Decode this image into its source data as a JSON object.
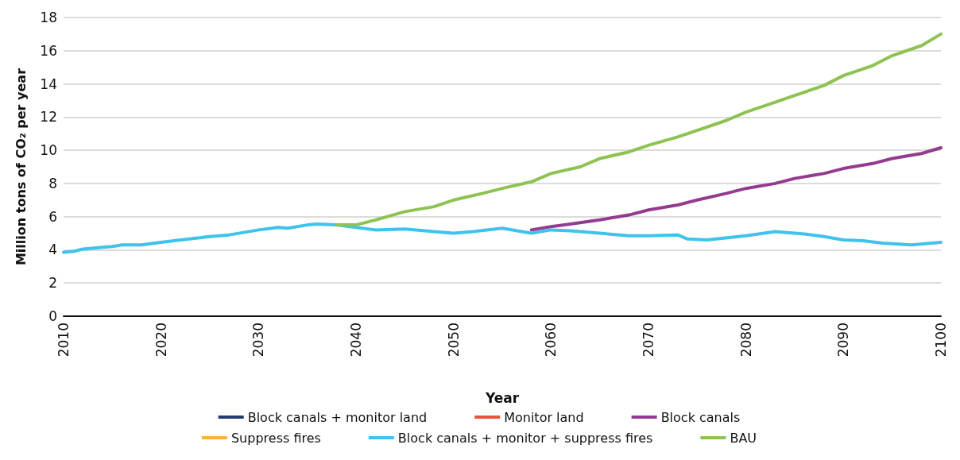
{
  "chart_data": {
    "type": "line",
    "xlabel": "Year",
    "ylabel": "Million tons of CO₂ per year",
    "xlim": [
      2010,
      2100
    ],
    "xticks": [
      2010,
      2020,
      2030,
      2040,
      2050,
      2060,
      2070,
      2080,
      2090,
      2100
    ],
    "ylim": [
      0,
      18
    ],
    "yticks": [
      0,
      2,
      4,
      6,
      8,
      10,
      12,
      14,
      16,
      18
    ],
    "grid": "y",
    "legend": "bottom",
    "marker": "none",
    "line_style": "solid",
    "series": [
      {
        "name": "Block canals + monitor land",
        "color": "#253c6e"
      },
      {
        "name": "Monitor land",
        "color": "#e8553e"
      },
      {
        "name": "Block canals",
        "color": "#953b8f",
        "x": [
          2058,
          2060,
          2062,
          2065,
          2068,
          2070,
          2073,
          2075,
          2078,
          2080,
          2083,
          2085,
          2088,
          2090,
          2093,
          2095,
          2098,
          2100
        ],
        "values": [
          5.2,
          5.4,
          5.55,
          5.8,
          6.1,
          6.4,
          6.7,
          7.0,
          7.4,
          7.7,
          8.0,
          8.3,
          8.6,
          8.9,
          9.2,
          9.5,
          9.8,
          10.15
        ]
      },
      {
        "name": "Suppress fires",
        "color": "#f6b334"
      },
      {
        "name": "Block canals + monitor + suppress fires",
        "color": "#3ec3ec",
        "x": [
          2010,
          2011,
          2012,
          2014,
          2015,
          2016,
          2018,
          2020,
          2022,
          2025,
          2027,
          2030,
          2032,
          2033,
          2035,
          2036,
          2038,
          2040,
          2042,
          2045,
          2048,
          2050,
          2052,
          2055,
          2057,
          2058,
          2060,
          2062,
          2065,
          2068,
          2070,
          2073,
          2074,
          2076,
          2080,
          2083,
          2086,
          2088,
          2090,
          2092,
          2094,
          2097,
          2100
        ],
        "values": [
          3.85,
          3.9,
          4.05,
          4.15,
          4.2,
          4.3,
          4.3,
          4.45,
          4.6,
          4.8,
          4.9,
          5.2,
          5.35,
          5.3,
          5.5,
          5.55,
          5.5,
          5.35,
          5.2,
          5.25,
          5.1,
          5.0,
          5.1,
          5.3,
          5.1,
          5.0,
          5.2,
          5.15,
          5.0,
          4.85,
          4.85,
          4.9,
          4.65,
          4.6,
          4.85,
          5.1,
          4.95,
          4.8,
          4.6,
          4.55,
          4.4,
          4.3,
          4.45
        ]
      },
      {
        "name": "BAU",
        "color": "#8ec251",
        "x": [
          2038,
          2040,
          2042,
          2045,
          2048,
          2050,
          2053,
          2055,
          2058,
          2060,
          2063,
          2065,
          2068,
          2070,
          2073,
          2075,
          2078,
          2080,
          2083,
          2085,
          2088,
          2090,
          2093,
          2095,
          2098,
          2100
        ],
        "values": [
          5.5,
          5.5,
          5.8,
          6.3,
          6.6,
          7.0,
          7.4,
          7.7,
          8.1,
          8.6,
          9.0,
          9.5,
          9.9,
          10.3,
          10.8,
          11.2,
          11.8,
          12.3,
          12.9,
          13.3,
          13.9,
          14.5,
          15.1,
          15.7,
          16.3,
          17.0
        ]
      }
    ]
  }
}
